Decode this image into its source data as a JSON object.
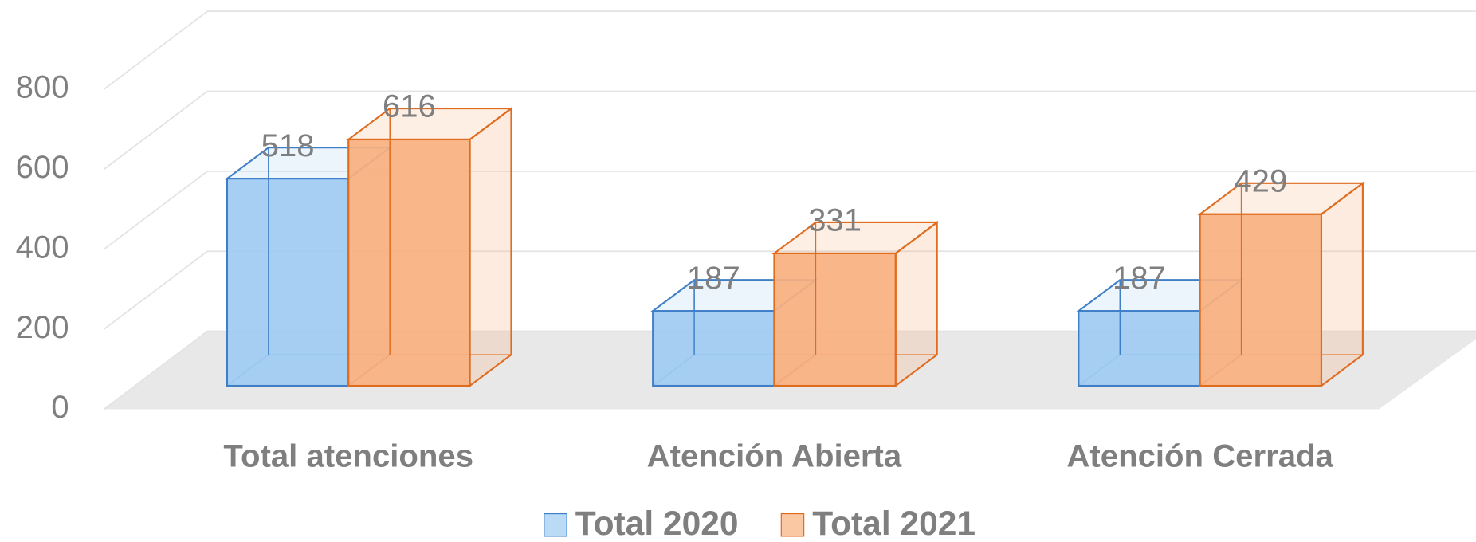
{
  "chart_data": {
    "type": "bar3d",
    "categories": [
      "Total atenciones",
      "Atención Abierta",
      "Atención Cerrada"
    ],
    "series": [
      {
        "name": "Total 2020",
        "color": "#9ecbf2",
        "edge": "#3f7fc8",
        "values": [
          518,
          187,
          187
        ]
      },
      {
        "name": "Total 2021",
        "color": "#f9b07e",
        "edge": "#df6c1f",
        "values": [
          616,
          331,
          429
        ]
      }
    ],
    "ylim": [
      0,
      800
    ],
    "yticks": [
      0,
      200,
      400,
      600,
      800
    ],
    "grid": true,
    "legend": "bottom"
  }
}
